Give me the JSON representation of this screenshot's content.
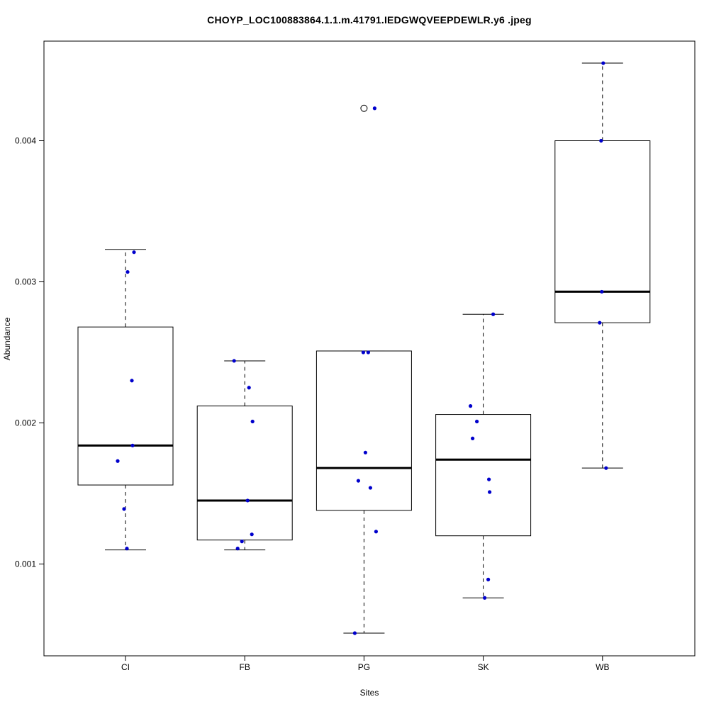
{
  "chart_data": {
    "type": "boxplot",
    "title": "CHOYP_LOC100883864.1.1.m.41791.IEDGWQVEEPDEWLR.y6 .jpeg",
    "xlabel": "Sites",
    "ylabel": "Abundance",
    "categories": [
      "CI",
      "FB",
      "PG",
      "SK",
      "WB"
    ],
    "yticks": [
      0.001,
      0.002,
      0.003,
      0.004
    ],
    "ylim": [
      0.00035,
      0.0047
    ],
    "grid": false,
    "legend": false,
    "point_color": "#0000cc",
    "box_fill": "#ffffff",
    "line_color": "#000000",
    "boxes": [
      {
        "label": "CI",
        "whisker_low": 0.0011,
        "q1": 0.00156,
        "median": 0.00184,
        "q3": 0.00268,
        "whisker_high": 0.00323,
        "outliers": [],
        "points": [
          [
            12,
            0.00321
          ],
          [
            3,
            0.00307
          ],
          [
            9,
            0.0023
          ],
          [
            10,
            0.00184
          ],
          [
            -11,
            0.00173
          ],
          [
            -2,
            0.00139
          ],
          [
            2,
            0.00111
          ]
        ]
      },
      {
        "label": "FB",
        "whisker_low": 0.0011,
        "q1": 0.00117,
        "median": 0.00145,
        "q3": 0.00212,
        "whisker_high": 0.00244,
        "outliers": [],
        "points": [
          [
            -15,
            0.00244
          ],
          [
            6,
            0.00225
          ],
          [
            11,
            0.00201
          ],
          [
            4,
            0.00145
          ],
          [
            10,
            0.00121
          ],
          [
            -4,
            0.00116
          ],
          [
            -10,
            0.00111
          ]
        ]
      },
      {
        "label": "PG",
        "whisker_low": 0.00051,
        "q1": 0.00138,
        "median": 0.00168,
        "q3": 0.00251,
        "whisker_high": 0.00251,
        "outliers": [
          0.00423
        ],
        "points": [
          [
            15,
            0.00423
          ],
          [
            -1,
            0.0025
          ],
          [
            6,
            0.0025
          ],
          [
            2,
            0.00179
          ],
          [
            -8,
            0.00159
          ],
          [
            9,
            0.00154
          ],
          [
            17,
            0.00123
          ],
          [
            -13,
            0.00051
          ]
        ]
      },
      {
        "label": "SK",
        "whisker_low": 0.00076,
        "q1": 0.0012,
        "median": 0.00174,
        "q3": 0.00206,
        "whisker_high": 0.00277,
        "outliers": [],
        "points": [
          [
            14,
            0.00277
          ],
          [
            -18,
            0.00212
          ],
          [
            -9,
            0.00201
          ],
          [
            -15,
            0.00189
          ],
          [
            8,
            0.0016
          ],
          [
            9,
            0.00151
          ],
          [
            7,
            0.00089
          ],
          [
            2,
            0.00076
          ]
        ]
      },
      {
        "label": "WB",
        "whisker_low": 0.00168,
        "q1": 0.00271,
        "median": 0.00293,
        "q3": 0.004,
        "whisker_high": 0.00455,
        "outliers": [],
        "points": [
          [
            1,
            0.00455
          ],
          [
            -2,
            0.004
          ],
          [
            -1,
            0.00293
          ],
          [
            -4,
            0.00271
          ],
          [
            5,
            0.00168
          ]
        ]
      }
    ]
  }
}
